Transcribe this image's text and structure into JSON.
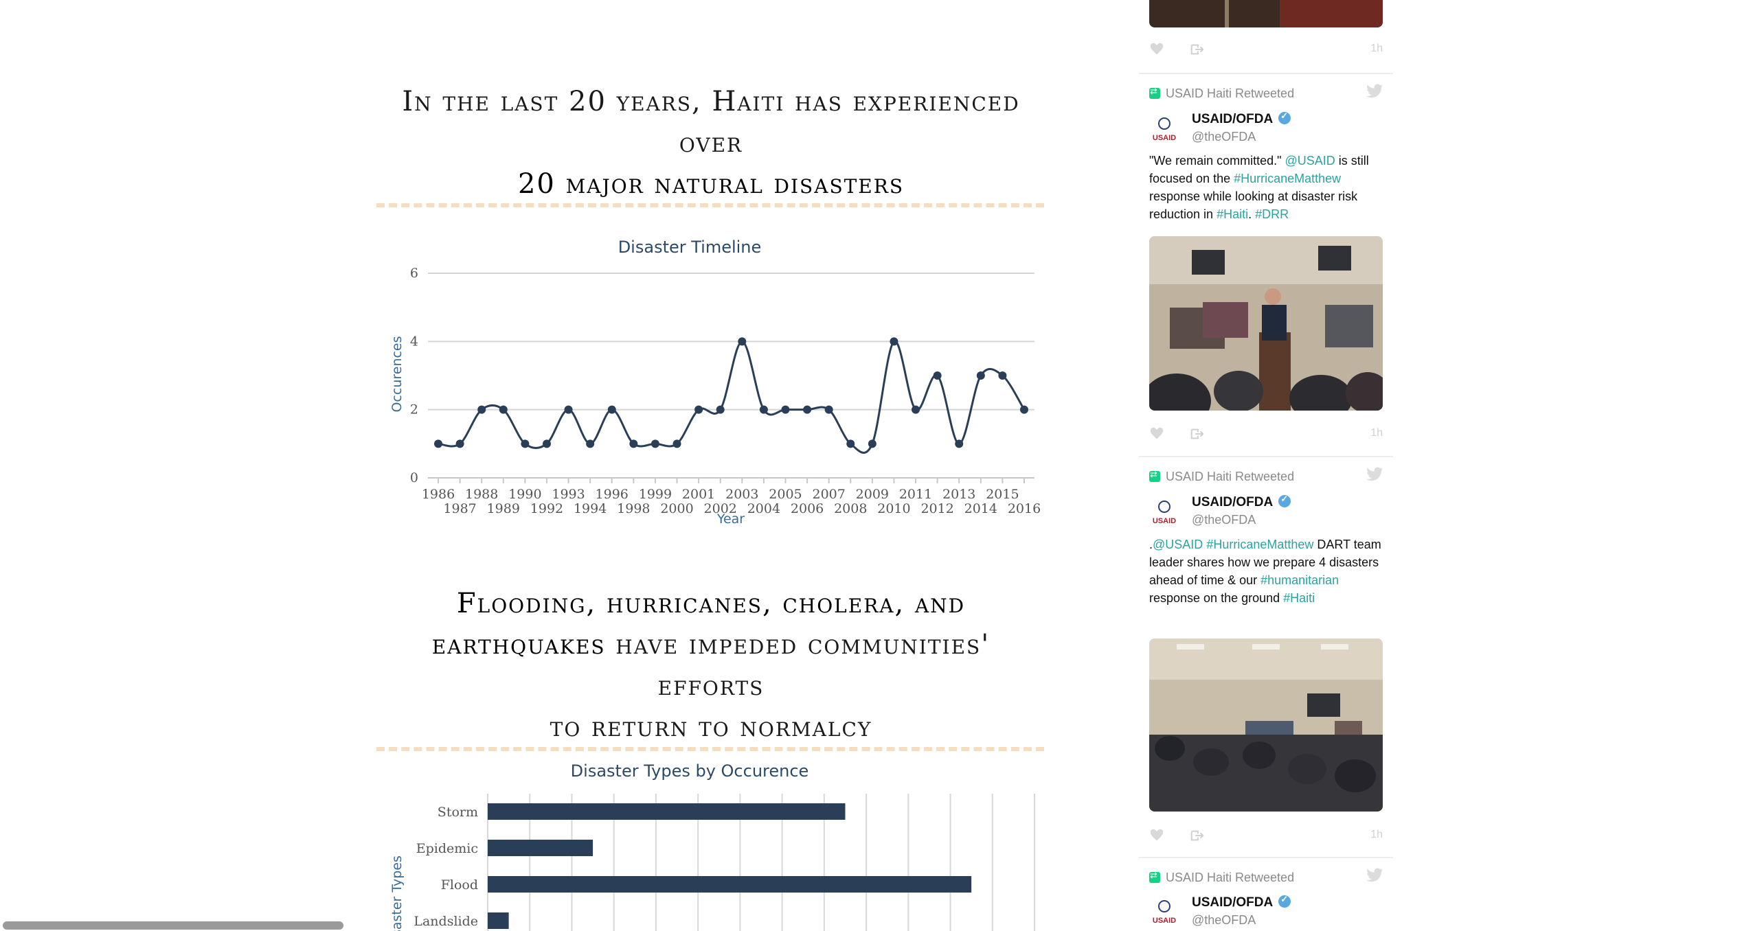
{
  "headline1": {
    "line1": "In the last 20 years, Haiti has experienced over",
    "line2": "20 major natural disasters"
  },
  "headline2": {
    "strong1": "Flooding, hurricanes, cholera, and",
    "strong2": "earthquakes",
    "rest1": " have impeded communities' efforts",
    "rest2": "to return to normalcy"
  },
  "chart_data": [
    {
      "type": "line",
      "title": "Disaster Timeline",
      "xlabel": "Year",
      "ylabel": "Occurences",
      "ylim": [
        0,
        6
      ],
      "yticks": [
        "0",
        "2",
        "4",
        "6"
      ],
      "grid": true,
      "x": [
        "1986",
        "1987",
        "1988",
        "1989",
        "1990",
        "1992",
        "1993",
        "1994",
        "1996",
        "1998",
        "1999",
        "2000",
        "2001",
        "2002",
        "2003",
        "2004",
        "2005",
        "2006",
        "2007",
        "2008",
        "2009",
        "2010",
        "2011",
        "2012",
        "2013",
        "2014",
        "2015",
        "2016"
      ],
      "series": [
        {
          "values": [
            1,
            1,
            2,
            2,
            1,
            1,
            2,
            1,
            2,
            1,
            1,
            1,
            2,
            2,
            4,
            2,
            2,
            2,
            2,
            1,
            1,
            4,
            2,
            3,
            1,
            3,
            3,
            2
          ],
          "color": "#2b3e58"
        }
      ]
    },
    {
      "type": "bar",
      "orientation": "horizontal",
      "title": "Disaster Types by Occurence",
      "ylabel": "Disaster Types",
      "categories": [
        "Storm",
        "Epidemic",
        "Flood",
        "Landslide"
      ],
      "values": [
        17,
        5,
        23,
        1
      ],
      "xlim": [
        0,
        26
      ],
      "grid": true,
      "color": "#2b3e58"
    }
  ],
  "twitter": {
    "top_card_time": "1h",
    "tweets": [
      {
        "retweet_label": "USAID Haiti Retweeted",
        "name": "USAID/OFDA",
        "handle": "@theOFDA",
        "avatar_text": "USAID",
        "text_parts": [
          {
            "t": "\"We remain committed.\" ",
            "link": false
          },
          {
            "t": "@USAID",
            "link": true
          },
          {
            "t": " is still focused on the ",
            "link": false
          },
          {
            "t": "#HurricaneMatthew",
            "link": true
          },
          {
            "t": " response while looking at disaster risk reduction in ",
            "link": false
          },
          {
            "t": "#Haiti",
            "link": true
          },
          {
            "t": ". ",
            "link": false
          },
          {
            "t": "#DRR",
            "link": true
          }
        ],
        "time": "1h"
      },
      {
        "retweet_label": "USAID Haiti Retweeted",
        "name": "USAID/OFDA",
        "handle": "@theOFDA",
        "avatar_text": "USAID",
        "text_parts": [
          {
            "t": ".",
            "link": false
          },
          {
            "t": "@USAID",
            "link": true
          },
          {
            "t": " ",
            "link": false
          },
          {
            "t": "#HurricaneMatthew",
            "link": true
          },
          {
            "t": " DART team leader shares how we prepare 4 disasters ahead of time & our ",
            "link": false
          },
          {
            "t": "#humanitarian",
            "link": true
          },
          {
            "t": " response on the ground ",
            "link": false
          },
          {
            "t": "#Haiti",
            "link": true
          }
        ],
        "time": "1h"
      },
      {
        "retweet_label": "USAID Haiti Retweeted",
        "name": "USAID/OFDA",
        "handle": "@theOFDA",
        "avatar_text": "USAID"
      }
    ]
  }
}
